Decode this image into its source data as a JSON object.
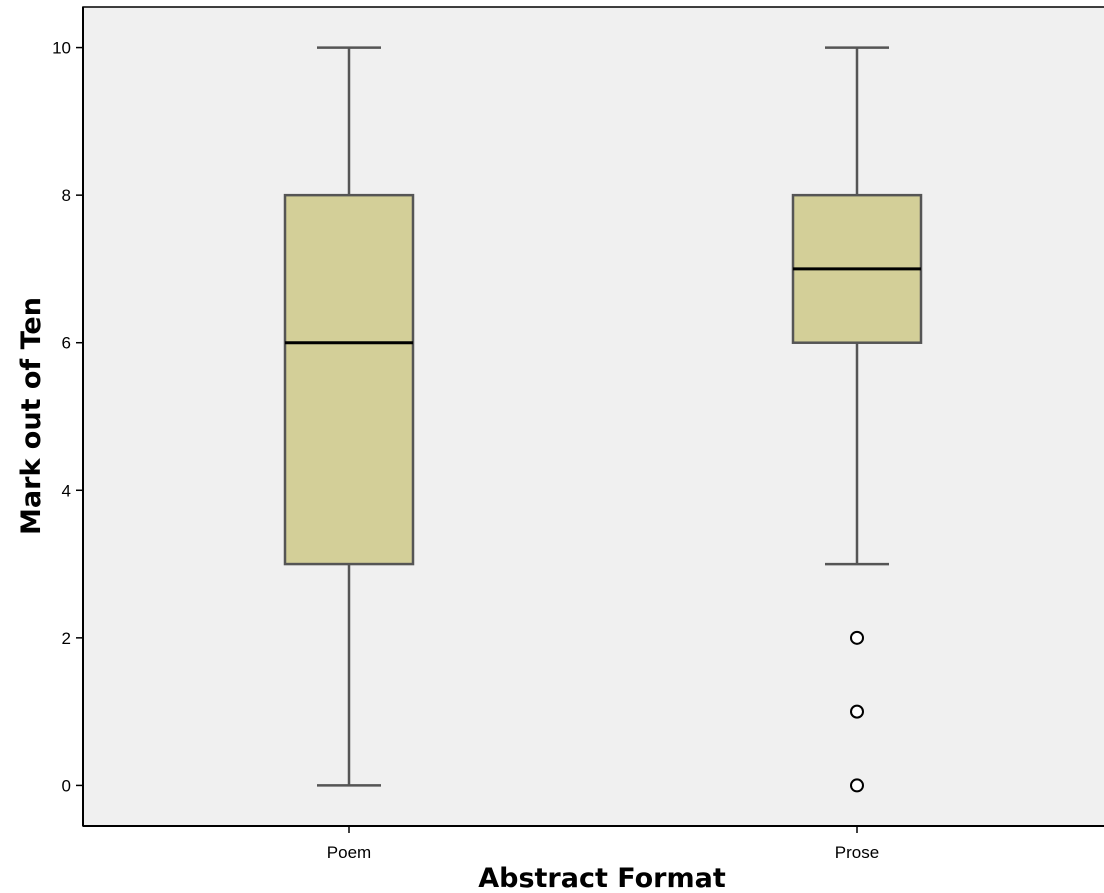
{
  "chart_data": {
    "type": "box",
    "title": "",
    "xlabel": "Abstract Format",
    "ylabel": "Mark out of Ten",
    "ylim": [
      -0.55,
      10.55
    ],
    "yticks": [
      0,
      2,
      4,
      6,
      8,
      10
    ],
    "y_tick_labels": [
      "0",
      "2",
      "4",
      "6",
      "8",
      "10"
    ],
    "grid": false,
    "legend": "none",
    "categories": [
      "Poem",
      "Prose"
    ],
    "boxes": [
      {
        "category": "Poem",
        "whisker_low": 0,
        "q1": 3,
        "median": 6,
        "q3": 8,
        "whisker_high": 10,
        "outliers": []
      },
      {
        "category": "Prose",
        "whisker_low": 3,
        "q1": 6,
        "median": 7,
        "q3": 8,
        "whisker_high": 10,
        "outliers": [
          2,
          1,
          0
        ]
      }
    ],
    "colors": {
      "plot_background": "#f0f0f0",
      "box_fill": "#d3cf98",
      "box_stroke": "#555555",
      "median": "#000000",
      "axis": "#000000"
    }
  }
}
